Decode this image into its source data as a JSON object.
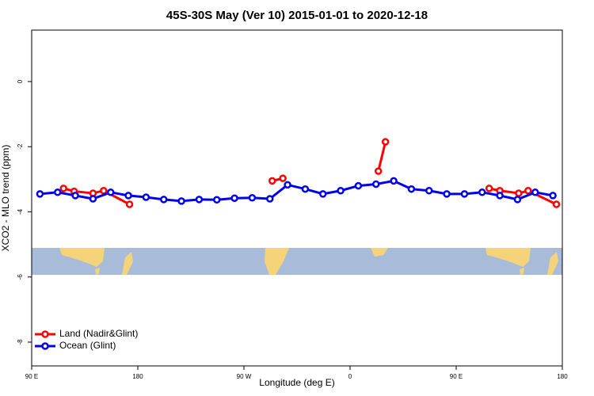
{
  "chart_data": {
    "type": "line",
    "title": "45S-30S May (Ver 10)   2015-01-01 to 2020-12-18",
    "xlabel": "Longitude (deg E)",
    "ylabel": "XCO2 - MLO trend (ppm)",
    "xlim": [
      90,
      540
    ],
    "ylim": [
      -8.73,
      1.58
    ],
    "xticks": [
      {
        "value": 90,
        "label": "90 E"
      },
      {
        "value": 180,
        "label": "180"
      },
      {
        "value": 270,
        "label": "90 W"
      },
      {
        "value": 360,
        "label": "0"
      },
      {
        "value": 450,
        "label": "90 E"
      },
      {
        "value": 540,
        "label": "180"
      }
    ],
    "yticks": [
      -8,
      -6,
      -4,
      -2,
      0
    ],
    "legend": "bottom-left",
    "series": [
      {
        "name": "Land (Nadir&Glint)",
        "color": "#ff0000",
        "x": [
          117,
          126,
          142,
          151,
          173,
          null,
          294,
          303,
          null,
          384,
          390,
          null,
          478,
          487,
          503,
          511,
          535
        ],
        "values": [
          -3.28,
          -3.37,
          -3.43,
          -3.35,
          -3.77,
          null,
          -3.05,
          -2.97,
          null,
          -2.75,
          -1.85,
          null,
          -3.28,
          -3.35,
          -3.43,
          -3.35,
          -3.77
        ]
      },
      {
        "name": "Ocean (Glint)",
        "color": "#0000ee",
        "x": [
          97,
          112,
          127,
          142,
          157,
          172,
          187,
          202,
          217,
          232,
          247,
          262,
          277,
          292,
          307,
          322,
          337,
          352,
          367,
          382,
          397,
          412,
          427,
          442,
          457,
          472,
          487,
          502,
          517,
          532
        ],
        "values": [
          -3.45,
          -3.4,
          -3.5,
          -3.6,
          -3.4,
          -3.5,
          -3.55,
          -3.62,
          -3.67,
          -3.62,
          -3.63,
          -3.58,
          -3.57,
          -3.6,
          -3.17,
          -3.3,
          -3.45,
          -3.35,
          -3.2,
          -3.15,
          -3.05,
          -3.3,
          -3.35,
          -3.45,
          -3.45,
          -3.4,
          -3.5,
          -3.62,
          -3.4,
          -3.5
        ]
      }
    ]
  }
}
